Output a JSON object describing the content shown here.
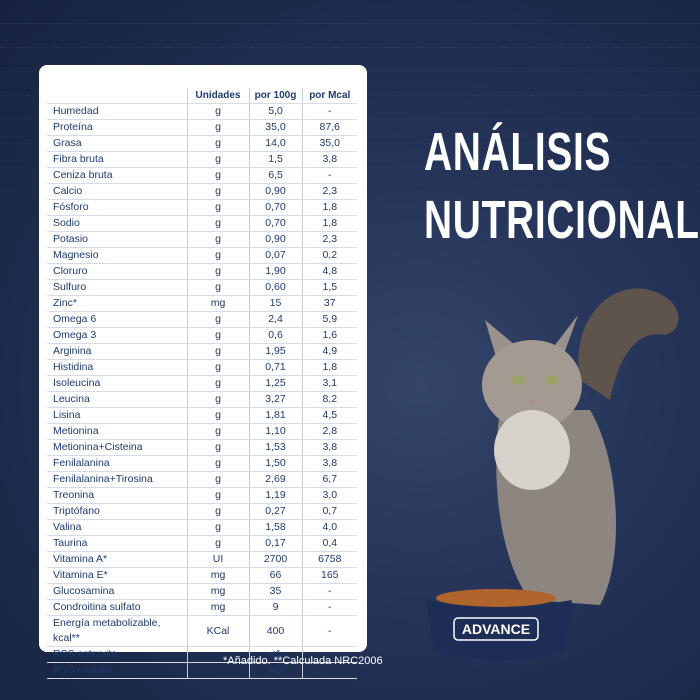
{
  "title_lines": [
    "ANÁLISIS",
    "NUTRICIONAL"
  ],
  "table": {
    "headers": [
      "",
      "Unidades",
      "por 100g",
      "por Mcal"
    ],
    "rows": [
      [
        "Humedad",
        "g",
        "5,0",
        "-"
      ],
      [
        "Proteína",
        "g",
        "35,0",
        "87,6"
      ],
      [
        "Grasa",
        "g",
        "14,0",
        "35,0"
      ],
      [
        "Fibra bruta",
        "g",
        "1,5",
        "3,8"
      ],
      [
        "Ceniza bruta",
        "g",
        "6,5",
        "-"
      ],
      [
        "Calcio",
        "g",
        "0,90",
        "2,3"
      ],
      [
        "Fósforo",
        "g",
        "0,70",
        "1,8"
      ],
      [
        "Sodio",
        "g",
        "0,70",
        "1,8"
      ],
      [
        "Potasio",
        "g",
        "0,90",
        "2,3"
      ],
      [
        "Magnesio",
        "g",
        "0,07",
        "0,2"
      ],
      [
        "Cloruro",
        "g",
        "1,90",
        "4,8"
      ],
      [
        "Sulfuro",
        "g",
        "0,60",
        "1,5"
      ],
      [
        "Zinc*",
        "mg",
        "15",
        "37"
      ],
      [
        "Omega 6",
        "g",
        "2,4",
        "5,9"
      ],
      [
        "Omega 3",
        "g",
        "0,6",
        "1,6"
      ],
      [
        "Arginina",
        "g",
        "1,95",
        "4,9"
      ],
      [
        "Histidina",
        "g",
        "0,71",
        "1,8"
      ],
      [
        "Isoleucina",
        "g",
        "1,25",
        "3,1"
      ],
      [
        "Leucina",
        "g",
        "3,27",
        "8,2"
      ],
      [
        "Lisina",
        "g",
        "1,81",
        "4,5"
      ],
      [
        "Metionina",
        "g",
        "1,10",
        "2,8"
      ],
      [
        "Metionina+Cisteina",
        "g",
        "1,53",
        "3,8"
      ],
      [
        "Fenilalanina",
        "g",
        "1,50",
        "3,8"
      ],
      [
        "Fenilalanina+Tirosina",
        "g",
        "2,69",
        "6,7"
      ],
      [
        "Treonina",
        "g",
        "1,19",
        "3,0"
      ],
      [
        "Triptófano",
        "g",
        "0,27",
        "0,7"
      ],
      [
        "Valina",
        "g",
        "1,58",
        "4,0"
      ],
      [
        "Taurina",
        "g",
        "0,17",
        "0,4"
      ],
      [
        "Vitamina A*",
        "UI",
        "2700",
        "6758"
      ],
      [
        "Vitamina E*",
        "mg",
        "66",
        "165"
      ],
      [
        "Glucosamina",
        "mg",
        "35",
        "-"
      ],
      [
        "Condroitina sulfato",
        "mg",
        "9",
        "-"
      ],
      [
        "Energía metabolizable, kcal**",
        "KCal",
        "400",
        "-"
      ],
      [
        "RSS estruvita",
        "",
        "<1",
        "-"
      ],
      [
        "RSS oxalato",
        "",
        "<5",
        "-"
      ]
    ]
  },
  "footnote": "*Añadido. **Calculada NRC2006",
  "bowl_brand": "ADVANCE",
  "colors": {
    "background": "#233256",
    "table_text": "#1d3a6e",
    "title": "#ffffff"
  }
}
